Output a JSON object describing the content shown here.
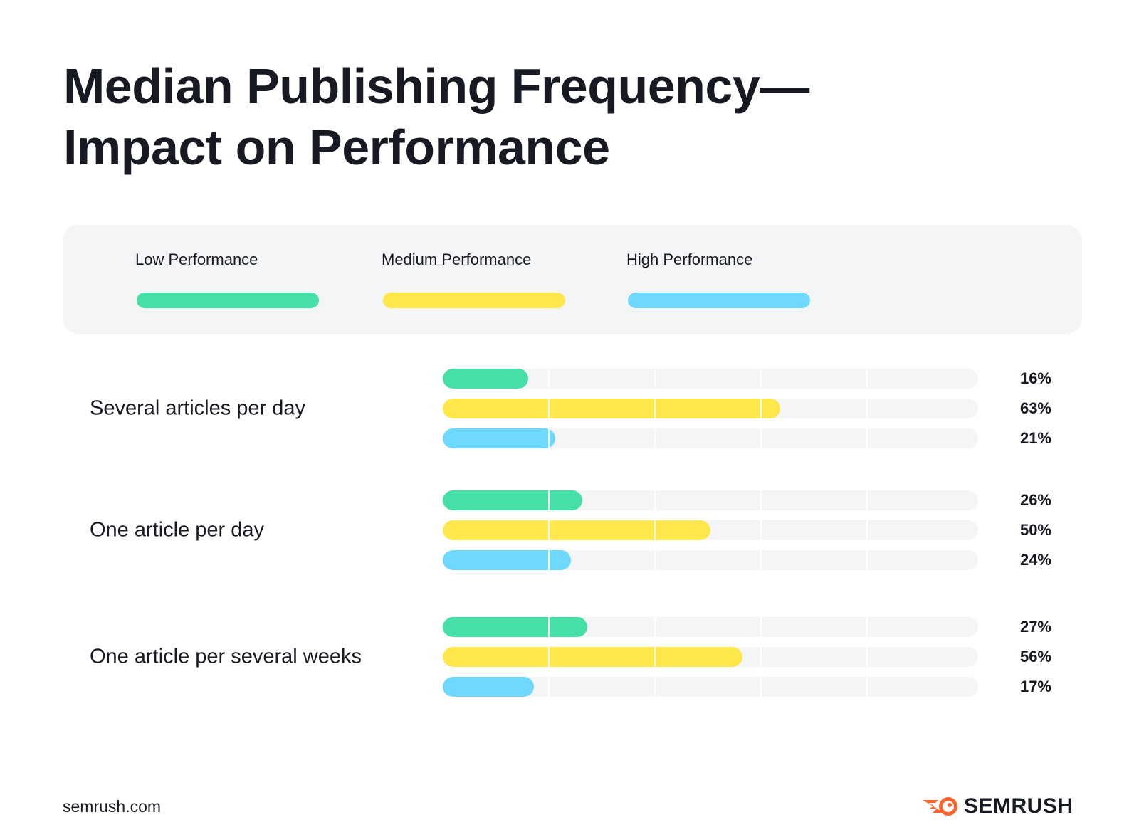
{
  "chart_data": {
    "type": "bar",
    "orientation": "horizontal",
    "title": "Median Publishing Frequency—\nImpact on Performance",
    "title_lines": [
      "Median Publishing Frequency—",
      "Impact on Performance"
    ],
    "categories": [
      "Several articles per day",
      "One article per day",
      "One article per several weeks"
    ],
    "series": [
      {
        "name": "Low Performance",
        "color": "#46e0a6",
        "values": [
          16,
          26,
          27
        ],
        "labels": [
          "16%",
          "26%",
          "27%"
        ]
      },
      {
        "name": "Medium Performance",
        "color": "#ffe74c",
        "values": [
          63,
          50,
          56
        ],
        "labels": [
          "63%",
          "50%",
          "56%"
        ]
      },
      {
        "name": "High Performance",
        "color": "#6fd9fd",
        "values": [
          21,
          24,
          17
        ],
        "labels": [
          "21%",
          "24%",
          "17%"
        ]
      }
    ],
    "xlim": [
      0,
      100
    ],
    "grid": true,
    "legend_placement": "top"
  },
  "footer": {
    "source": "semrush.com",
    "logo_text": "SEMRUSH",
    "logo_color": "#ff642d"
  }
}
